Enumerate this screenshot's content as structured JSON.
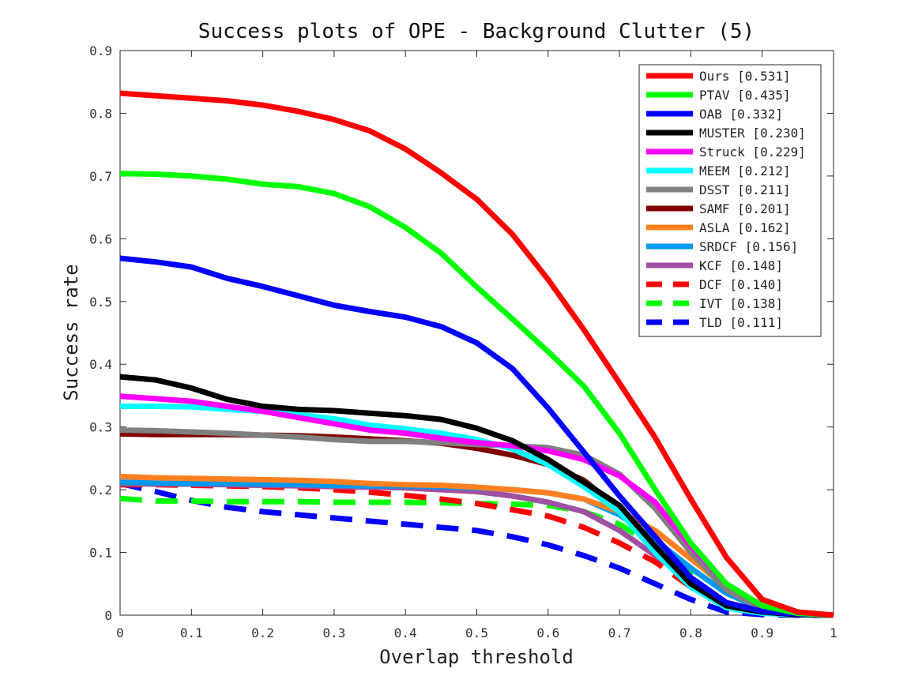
{
  "chart_data": {
    "type": "line",
    "title": "Success plots of OPE - Background Clutter (5)",
    "xlabel": "Overlap threshold",
    "ylabel": "Success rate",
    "xlim": [
      0,
      1
    ],
    "ylim": [
      0,
      0.9
    ],
    "x_ticks": [
      0,
      0.1,
      0.2,
      0.3,
      0.4,
      0.5,
      0.6,
      0.7,
      0.8,
      0.9,
      1
    ],
    "x_tick_labels": [
      "0",
      "0.1",
      "0.2",
      "0.3",
      "0.4",
      "0.5",
      "0.6",
      "0.7",
      "0.8",
      "0.9",
      "1"
    ],
    "y_ticks": [
      0,
      0.1,
      0.2,
      0.3,
      0.4,
      0.5,
      0.6,
      0.7,
      0.8,
      0.9
    ],
    "y_tick_labels": [
      "0",
      "0.1",
      "0.2",
      "0.3",
      "0.4",
      "0.5",
      "0.6",
      "0.7",
      "0.8",
      "0.9"
    ],
    "grid": false,
    "legend_position": "top-right",
    "x": [
      0,
      0.05,
      0.1,
      0.15,
      0.2,
      0.25,
      0.3,
      0.35,
      0.4,
      0.45,
      0.5,
      0.55,
      0.6,
      0.65,
      0.7,
      0.75,
      0.8,
      0.85,
      0.9,
      0.95,
      1
    ],
    "series": [
      {
        "name": "Ours [0.531]",
        "color": "#ff0000",
        "dash": "solid",
        "values": [
          0.832,
          0.828,
          0.824,
          0.82,
          0.813,
          0.803,
          0.79,
          0.772,
          0.743,
          0.705,
          0.663,
          0.607,
          0.535,
          0.455,
          0.37,
          0.283,
          0.185,
          0.092,
          0.025,
          0.005,
          0
        ]
      },
      {
        "name": "PTAV [0.435]",
        "color": "#00ff00",
        "dash": "solid",
        "values": [
          0.704,
          0.703,
          0.7,
          0.695,
          0.687,
          0.683,
          0.672,
          0.651,
          0.618,
          0.577,
          0.523,
          0.472,
          0.42,
          0.365,
          0.29,
          0.2,
          0.115,
          0.05,
          0.015,
          0.003,
          0
        ]
      },
      {
        "name": "OAB [0.332]",
        "color": "#0000ff",
        "dash": "solid",
        "values": [
          0.569,
          0.563,
          0.555,
          0.537,
          0.524,
          0.509,
          0.494,
          0.484,
          0.475,
          0.46,
          0.434,
          0.393,
          0.33,
          0.26,
          0.19,
          0.125,
          0.06,
          0.02,
          0.006,
          0.002,
          0
        ]
      },
      {
        "name": "MUSTER [0.230]",
        "color": "#000000",
        "dash": "solid",
        "values": [
          0.38,
          0.375,
          0.362,
          0.344,
          0.333,
          0.328,
          0.326,
          0.322,
          0.318,
          0.312,
          0.298,
          0.278,
          0.248,
          0.212,
          0.175,
          0.11,
          0.05,
          0.015,
          0.005,
          0.001,
          0
        ]
      },
      {
        "name": "Struck [0.229]",
        "color": "#ff00ff",
        "dash": "solid",
        "values": [
          0.349,
          0.345,
          0.341,
          0.333,
          0.325,
          0.315,
          0.305,
          0.295,
          0.29,
          0.282,
          0.275,
          0.27,
          0.262,
          0.248,
          0.222,
          0.18,
          0.11,
          0.05,
          0.015,
          0.003,
          0
        ]
      },
      {
        "name": "MEEM [0.212]",
        "color": "#00ffff",
        "dash": "solid",
        "values": [
          0.333,
          0.333,
          0.332,
          0.328,
          0.325,
          0.32,
          0.313,
          0.303,
          0.297,
          0.29,
          0.28,
          0.265,
          0.24,
          0.205,
          0.165,
          0.1,
          0.045,
          0.012,
          0.003,
          0.001,
          0
        ]
      },
      {
        "name": "DSST [0.211]",
        "color": "#808080",
        "dash": "solid",
        "values": [
          0.295,
          0.294,
          0.292,
          0.29,
          0.287,
          0.284,
          0.28,
          0.277,
          0.277,
          0.275,
          0.272,
          0.27,
          0.267,
          0.255,
          0.225,
          0.17,
          0.1,
          0.04,
          0.01,
          0.002,
          0
        ]
      },
      {
        "name": "SAMF [0.201]",
        "color": "#800000",
        "dash": "solid",
        "values": [
          0.289,
          0.288,
          0.288,
          0.288,
          0.287,
          0.286,
          0.284,
          0.281,
          0.278,
          0.274,
          0.266,
          0.255,
          0.24,
          0.215,
          0.17,
          0.105,
          0.045,
          0.015,
          0.005,
          0.001,
          0
        ]
      },
      {
        "name": "ASLA [0.162]",
        "color": "#ff8020",
        "dash": "solid",
        "values": [
          0.221,
          0.219,
          0.218,
          0.217,
          0.216,
          0.215,
          0.213,
          0.21,
          0.208,
          0.207,
          0.204,
          0.2,
          0.195,
          0.185,
          0.165,
          0.135,
          0.09,
          0.045,
          0.015,
          0.003,
          0
        ]
      },
      {
        "name": "SRDCF [0.156]",
        "color": "#0099ee",
        "dash": "solid",
        "values": [
          0.212,
          0.211,
          0.21,
          0.21,
          0.209,
          0.208,
          0.207,
          0.206,
          0.206,
          0.205,
          0.203,
          0.2,
          0.195,
          0.185,
          0.16,
          0.12,
          0.075,
          0.035,
          0.01,
          0.002,
          0
        ]
      },
      {
        "name": "KCF [0.148]",
        "color": "#a050a0",
        "dash": "solid",
        "values": [
          0.21,
          0.209,
          0.209,
          0.208,
          0.207,
          0.206,
          0.205,
          0.204,
          0.203,
          0.2,
          0.197,
          0.19,
          0.18,
          0.165,
          0.135,
          0.095,
          0.055,
          0.02,
          0.006,
          0.001,
          0
        ]
      },
      {
        "name": "DCF [0.140]",
        "color": "#ff0000",
        "dash": "dashed",
        "values": [
          0.208,
          0.208,
          0.207,
          0.206,
          0.205,
          0.203,
          0.2,
          0.196,
          0.191,
          0.185,
          0.178,
          0.168,
          0.158,
          0.14,
          0.115,
          0.085,
          0.045,
          0.015,
          0.004,
          0.001,
          0
        ]
      },
      {
        "name": "IVT [0.138]",
        "color": "#00ff00",
        "dash": "dashed",
        "values": [
          0.186,
          0.182,
          0.182,
          0.181,
          0.181,
          0.181,
          0.18,
          0.18,
          0.18,
          0.179,
          0.178,
          0.177,
          0.175,
          0.165,
          0.145,
          0.11,
          0.07,
          0.04,
          0.018,
          0.005,
          0
        ]
      },
      {
        "name": "TLD [0.111]",
        "color": "#0000ff",
        "dash": "dashed",
        "values": [
          0.21,
          0.197,
          0.183,
          0.172,
          0.165,
          0.16,
          0.155,
          0.15,
          0.145,
          0.14,
          0.135,
          0.125,
          0.112,
          0.095,
          0.075,
          0.05,
          0.025,
          0.005,
          0.001,
          0,
          0
        ]
      }
    ]
  }
}
